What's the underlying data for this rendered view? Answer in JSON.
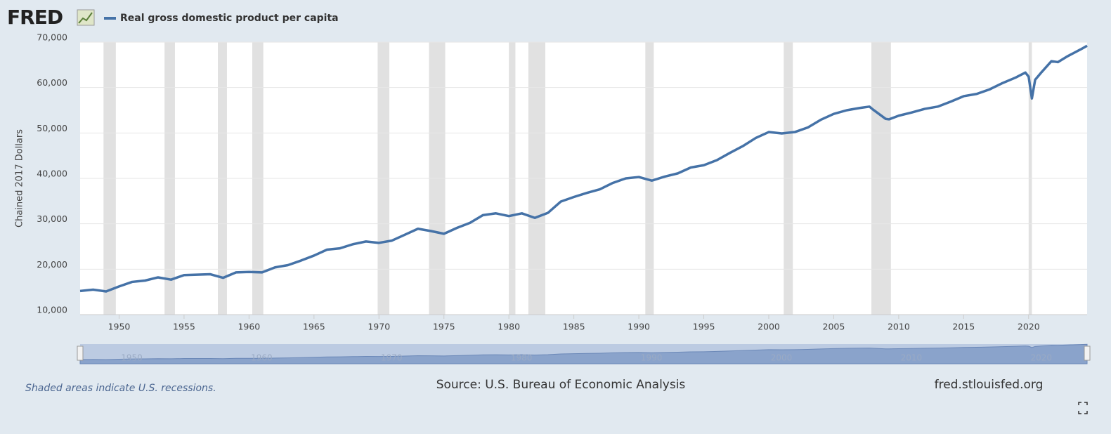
{
  "logo": "FRED",
  "chart_data": {
    "type": "line",
    "y_label": "Chained 2017 Dollars",
    "x": [
      1947,
      1948,
      1949,
      1950,
      1951,
      1952,
      1953,
      1954,
      1955,
      1956,
      1957,
      1958,
      1959,
      1960,
      1961,
      1962,
      1963,
      1964,
      1965,
      1966,
      1967,
      1968,
      1969,
      1970,
      1971,
      1972,
      1973,
      1974,
      1975,
      1976,
      1977,
      1978,
      1979,
      1980,
      1981,
      1982,
      1983,
      1984,
      1985,
      1986,
      1987,
      1988,
      1989,
      1990,
      1991,
      1992,
      1993,
      1994,
      1995,
      1996,
      1997,
      1998,
      1999,
      2000,
      2001,
      2002,
      2003,
      2004,
      2005,
      2006,
      2007,
      2007.75,
      2008,
      2009,
      2009.25,
      2010,
      2011,
      2012,
      2013,
      2014,
      2015,
      2016,
      2017,
      2018,
      2019,
      2019.75,
      2020,
      2020.25,
      2020.5,
      2021,
      2021.75,
      2022.25,
      2023,
      2024,
      2024.5
    ],
    "series": [
      {
        "name": "Real gross domestic product per capita",
        "color": "#4572a7",
        "values": [
          15200,
          15500,
          15100,
          16200,
          17200,
          17500,
          18200,
          17700,
          18700,
          18800,
          18900,
          18100,
          19300,
          19400,
          19300,
          20400,
          20900,
          21900,
          23000,
          24300,
          24600,
          25500,
          26100,
          25800,
          26300,
          27600,
          28900,
          28400,
          27800,
          29100,
          30200,
          31900,
          32300,
          31700,
          32300,
          31300,
          32400,
          34900,
          35900,
          36800,
          37600,
          39000,
          40000,
          40300,
          39500,
          40400,
          41100,
          42400,
          42900,
          44000,
          45600,
          47100,
          48900,
          50200,
          49900,
          50200,
          51200,
          52900,
          54200,
          55000,
          55500,
          55800,
          55200,
          53100,
          53000,
          53800,
          54500,
          55300,
          55800,
          56900,
          58100,
          58600,
          59600,
          61000,
          62200,
          63300,
          62400,
          57600,
          61700,
          63400,
          65800,
          65600,
          66900,
          68400,
          69200
        ]
      }
    ],
    "xlim": [
      1947,
      2024.5
    ],
    "ylim": [
      10000,
      70000
    ],
    "xticks": [
      1950,
      1955,
      1960,
      1965,
      1970,
      1975,
      1980,
      1985,
      1990,
      1995,
      2000,
      2005,
      2010,
      2015,
      2020
    ],
    "yticks": [
      {
        "value": 10000,
        "label": "10,000"
      },
      {
        "value": 20000,
        "label": "20,000"
      },
      {
        "value": 30000,
        "label": "30,000"
      },
      {
        "value": 40000,
        "label": "40,000"
      },
      {
        "value": 50000,
        "label": "50,000"
      },
      {
        "value": 60000,
        "label": "60,000"
      },
      {
        "value": 70000,
        "label": "70,000"
      }
    ],
    "grid": true,
    "recessions": [
      [
        1948.8,
        1949.75
      ],
      [
        1953.5,
        1954.3
      ],
      [
        1957.6,
        1958.3
      ],
      [
        1960.25,
        1961.1
      ],
      [
        1969.9,
        1970.8
      ],
      [
        1973.85,
        1975.1
      ],
      [
        1980,
        1980.5
      ],
      [
        1981.5,
        1982.8
      ],
      [
        1990.5,
        1991.15
      ],
      [
        2001.15,
        2001.85
      ],
      [
        2007.9,
        2009.4
      ],
      [
        2020,
        2020.25
      ]
    ],
    "recession_color": "#e1e1e1",
    "navigator_ticks": [
      1950,
      1960,
      1970,
      1980,
      1990,
      2000,
      2010,
      2020
    ],
    "note": "Shaded areas indicate U.S. recessions.",
    "source": "Source: U.S. Bureau of Economic Analysis",
    "site": "fred.stlouisfed.org"
  }
}
